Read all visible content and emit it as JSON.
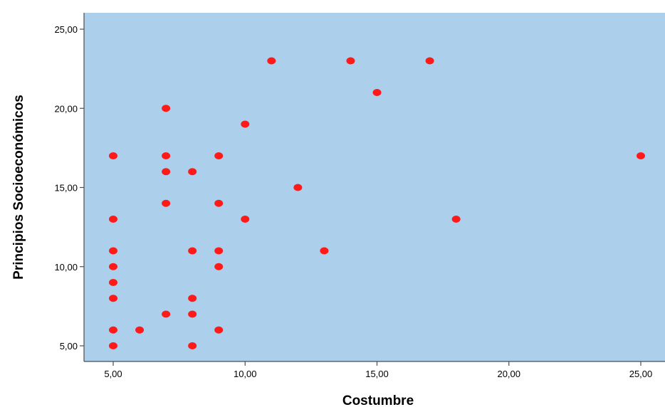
{
  "chart_data": {
    "type": "scatter",
    "title": "",
    "xlabel": "Costumbre",
    "ylabel": "Principios Socioeconómicos",
    "xlim": [
      4,
      26
    ],
    "ylim": [
      4,
      26
    ],
    "x_ticks": [
      5,
      10,
      15,
      20,
      25
    ],
    "y_ticks": [
      5,
      10,
      15,
      20,
      25
    ],
    "x_tick_labels": [
      "5,00",
      "10,00",
      "15,00",
      "20,00",
      "25,00"
    ],
    "y_tick_labels": [
      "5,00",
      "10,00",
      "15,00",
      "20,00",
      "25,00"
    ],
    "grid": false,
    "plot_background": "#accfec",
    "point_color": "#ff1a1a",
    "points": [
      {
        "x": 5,
        "y": 17
      },
      {
        "x": 5,
        "y": 13
      },
      {
        "x": 5,
        "y": 11
      },
      {
        "x": 5,
        "y": 10
      },
      {
        "x": 5,
        "y": 9
      },
      {
        "x": 5,
        "y": 8
      },
      {
        "x": 5,
        "y": 6
      },
      {
        "x": 5,
        "y": 5
      },
      {
        "x": 6,
        "y": 6
      },
      {
        "x": 7,
        "y": 20
      },
      {
        "x": 7,
        "y": 17
      },
      {
        "x": 7,
        "y": 16
      },
      {
        "x": 7,
        "y": 14
      },
      {
        "x": 7,
        "y": 7
      },
      {
        "x": 8,
        "y": 16
      },
      {
        "x": 8,
        "y": 11
      },
      {
        "x": 8,
        "y": 8
      },
      {
        "x": 8,
        "y": 7
      },
      {
        "x": 8,
        "y": 5
      },
      {
        "x": 9,
        "y": 17
      },
      {
        "x": 9,
        "y": 14
      },
      {
        "x": 9,
        "y": 11
      },
      {
        "x": 9,
        "y": 10
      },
      {
        "x": 9,
        "y": 6
      },
      {
        "x": 10,
        "y": 19
      },
      {
        "x": 10,
        "y": 13
      },
      {
        "x": 11,
        "y": 23
      },
      {
        "x": 12,
        "y": 15
      },
      {
        "x": 13,
        "y": 11
      },
      {
        "x": 14,
        "y": 23
      },
      {
        "x": 15,
        "y": 21
      },
      {
        "x": 17,
        "y": 23
      },
      {
        "x": 18,
        "y": 13
      },
      {
        "x": 25,
        "y": 17
      }
    ]
  }
}
